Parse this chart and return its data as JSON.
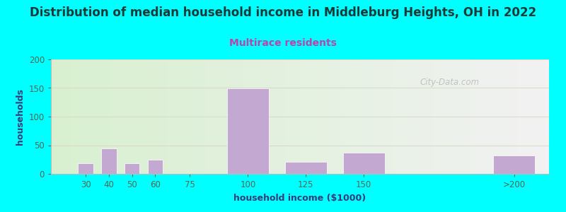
{
  "title": "Distribution of median household income in Middleburg Heights, OH in 2022",
  "subtitle": "Multirace residents",
  "xlabel": "household income ($1000)",
  "ylabel": "households",
  "background_color": "#00FFFF",
  "bar_color": "#C3A8D1",
  "bar_edge_color": "#FFFFFF",
  "categories": [
    "30",
    "40",
    "50",
    "60",
    "75",
    "100",
    "125",
    "150",
    ">200"
  ],
  "values": [
    19,
    45,
    19,
    25,
    0,
    149,
    21,
    37,
    32
  ],
  "bar_positions": [
    1,
    2,
    3,
    4,
    5,
    6,
    7,
    8,
    9
  ],
  "bar_widths": [
    1,
    1,
    1,
    1,
    1,
    2,
    2,
    2,
    2
  ],
  "ylim": [
    0,
    200
  ],
  "yticks": [
    0,
    50,
    100,
    150,
    200
  ],
  "title_fontsize": 12,
  "subtitle_fontsize": 10,
  "axis_label_fontsize": 9,
  "tick_fontsize": 8.5,
  "title_color": "#1A3A3A",
  "subtitle_color": "#BB44AA",
  "axis_label_color": "#3A3A7A",
  "tick_color": "#556655",
  "grid_color": "#D8D8C8",
  "watermark_text": "City-Data.com",
  "plot_bg_left": "#D8F0D0",
  "plot_bg_right": "#F2F2F2",
  "xtick_labels": [
    "30",
    "40",
    "50",
    "60",
    "75",
    "100",
    "125",
    "150",
    ">200"
  ]
}
